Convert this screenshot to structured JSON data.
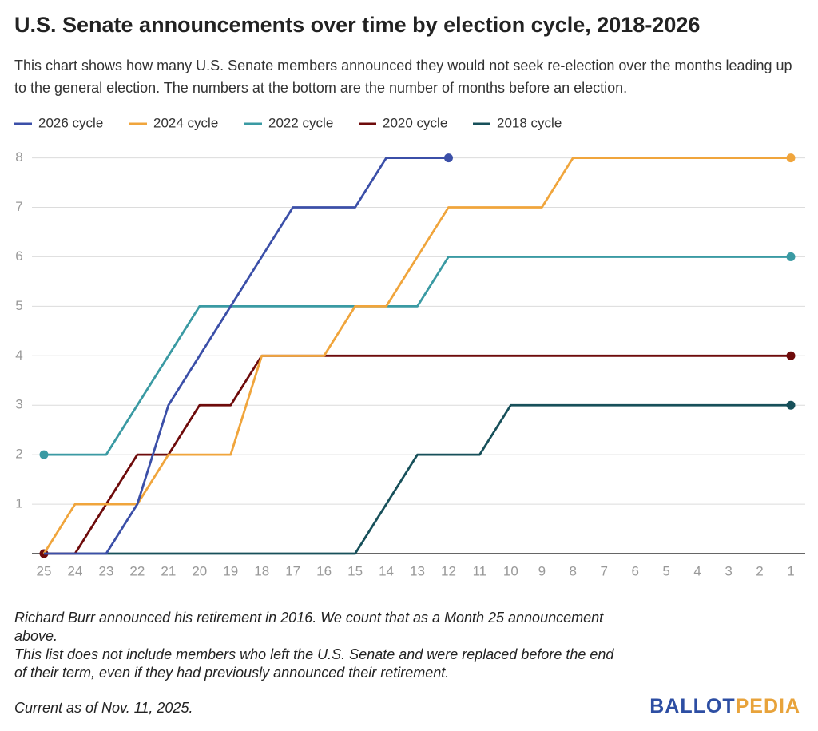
{
  "chart_data": {
    "type": "line",
    "title": "U.S. Senate announcements over time by election cycle, 2018-2026",
    "subtitle": "This chart shows how many U.S. Senate members announced they would not seek re-election over the months leading up to the general election. The numbers at the bottom are the number of months before an election.",
    "categories": [
      "25",
      "24",
      "23",
      "22",
      "21",
      "20",
      "19",
      "18",
      "17",
      "16",
      "15",
      "14",
      "13",
      "12",
      "11",
      "10",
      "9",
      "8",
      "7",
      "6",
      "5",
      "4",
      "3",
      "2",
      "1"
    ],
    "series": [
      {
        "name": "2026 cycle",
        "color": "#3b4fa8",
        "values": [
          0,
          0,
          0,
          1,
          3,
          4,
          5,
          6,
          7,
          7,
          7,
          8,
          8,
          8,
          null,
          null,
          null,
          null,
          null,
          null,
          null,
          null,
          null,
          null,
          null
        ]
      },
      {
        "name": "2024 cycle",
        "color": "#f0a53c",
        "values": [
          0,
          1,
          1,
          1,
          2,
          2,
          2,
          4,
          4,
          4,
          5,
          5,
          6,
          7,
          7,
          7,
          7,
          8,
          8,
          8,
          8,
          8,
          8,
          8,
          8
        ]
      },
      {
        "name": "2022 cycle",
        "color": "#3a9aa3",
        "values": [
          2,
          2,
          2,
          3,
          4,
          5,
          5,
          5,
          5,
          5,
          5,
          5,
          5,
          6,
          6,
          6,
          6,
          6,
          6,
          6,
          6,
          6,
          6,
          6,
          6
        ]
      },
      {
        "name": "2020 cycle",
        "color": "#6e0b0b",
        "values": [
          0,
          0,
          1,
          2,
          2,
          3,
          3,
          4,
          4,
          4,
          4,
          4,
          4,
          4,
          4,
          4,
          4,
          4,
          4,
          4,
          4,
          4,
          4,
          4,
          4
        ]
      },
      {
        "name": "2018 cycle",
        "color": "#17505a",
        "values": [
          0,
          0,
          0,
          0,
          0,
          0,
          0,
          0,
          0,
          0,
          0,
          1,
          2,
          2,
          2,
          3,
          3,
          3,
          3,
          3,
          3,
          3,
          3,
          3,
          3
        ]
      }
    ],
    "ylim": [
      0,
      8.3
    ],
    "yticks": [
      1,
      2,
      3,
      4,
      5,
      6,
      7,
      8
    ],
    "grid": true,
    "notes": [
      "Richard Burr announced his retirement in 2016. We count that as a Month 25 announcement above.",
      "This list does not include members who left the U.S. Senate and were replaced before the end of their term, even if they had previously announced their retirement."
    ],
    "footnote": "Current as of Nov. 11, 2025.",
    "logo": {
      "part1": "BALLOT",
      "part2": "PEDIA"
    }
  }
}
